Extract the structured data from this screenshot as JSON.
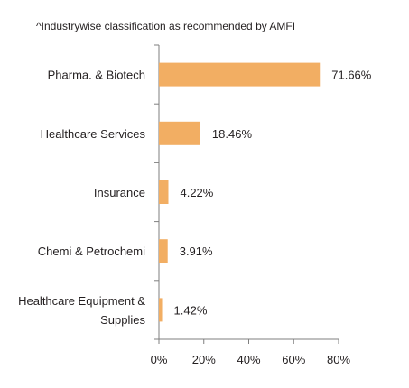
{
  "note": "^Industrywise classification as recommended by AMFI",
  "chart_data": {
    "type": "bar",
    "orientation": "horizontal",
    "title": "",
    "xlabel": "",
    "ylabel": "",
    "categories": [
      [
        "Pharma. & Biotech"
      ],
      [
        "Healthcare Services"
      ],
      [
        "Insurance"
      ],
      [
        "Chemi & Petrochemi"
      ],
      [
        "Healthcare Equipment &",
        "Supplies"
      ]
    ],
    "values": [
      71.66,
      18.46,
      4.22,
      3.91,
      1.42
    ],
    "value_labels": [
      "71.66%",
      "18.46%",
      "4.22%",
      "3.91%",
      "1.42%"
    ],
    "xlim": [
      0,
      80
    ],
    "x_ticks": [
      0,
      20,
      40,
      60,
      80
    ],
    "x_tick_labels": [
      "0%",
      "20%",
      "40%",
      "60%",
      "80%"
    ],
    "bar_color": "#f2ae63",
    "grid": false,
    "legend": "none"
  }
}
